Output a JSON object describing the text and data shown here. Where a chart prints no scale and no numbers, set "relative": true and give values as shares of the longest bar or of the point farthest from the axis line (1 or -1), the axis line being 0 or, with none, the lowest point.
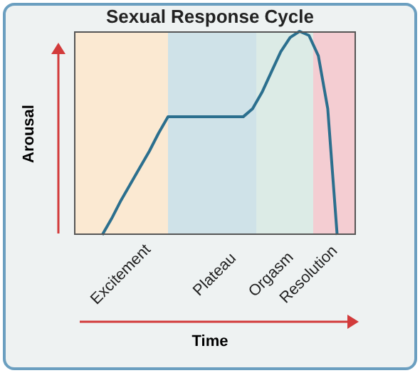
{
  "chart_data": {
    "type": "line",
    "title": "Sexual Response Cycle",
    "xlabel": "Time",
    "ylabel": "Arousal",
    "relative": true,
    "tick_labels": "x",
    "categories": [
      null,
      null,
      null,
      null,
      null,
      "Excitement",
      null,
      null,
      null,
      null,
      null,
      null,
      null,
      null,
      null,
      "Plateau",
      null,
      null,
      null,
      null,
      null,
      "Orgasm",
      null,
      null,
      null,
      "Resolution",
      null,
      null,
      null,
      null,
      null
    ],
    "series": [
      {
        "color": "#2b6f8e",
        "values": [
          null,
          null,
          null,
          0,
          0.08,
          0.17,
          0.25,
          0.33,
          0.41,
          0.5,
          0.58,
          0.58,
          0.58,
          0.58,
          0.58,
          0.58,
          0.58,
          0.58,
          0.58,
          0.62,
          0.7,
          0.8,
          0.9,
          0.97,
          1,
          0.98,
          0.88,
          0.62,
          0,
          null,
          null
        ]
      }
    ]
  }
}
